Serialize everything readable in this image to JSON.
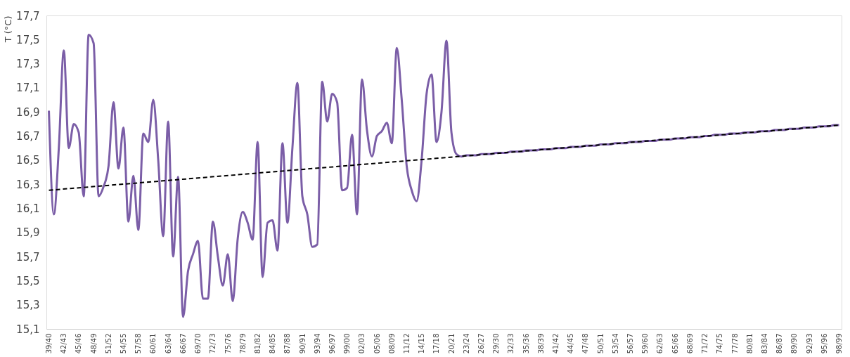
{
  "chart_data": {
    "type": "line",
    "ylabel": "T (°C)",
    "categories": [
      "39/40",
      null,
      null,
      "42/43",
      null,
      null,
      "45/46",
      null,
      null,
      "48/49",
      null,
      null,
      "51/52",
      null,
      null,
      "54/55",
      null,
      null,
      "57/58",
      null,
      null,
      "60/61",
      null,
      null,
      "63/64",
      null,
      null,
      "66/67",
      null,
      null,
      "69/70",
      null,
      null,
      "72/73",
      null,
      null,
      "75/76",
      null,
      null,
      "78/79",
      null,
      null,
      "81/82",
      null,
      null,
      "84/85",
      null,
      null,
      "87/88",
      null,
      null,
      "90/91",
      null,
      null,
      "93/94",
      null,
      null,
      "96/97",
      null,
      null,
      "99/00",
      null,
      null,
      "02/03",
      null,
      null,
      "05/06",
      null,
      null,
      "08/09",
      null,
      null,
      "11/12",
      null,
      null,
      "14/15",
      null,
      null,
      "17/18",
      null,
      null,
      "20/21",
      null,
      null,
      "23/24",
      null,
      null,
      "26/27",
      null,
      null,
      "29/30",
      null,
      null,
      "32/33",
      null,
      null,
      "35/36",
      null,
      null,
      "38/39",
      null,
      null,
      "41/42",
      null,
      null,
      "44/45",
      null,
      null,
      "47/48",
      null,
      null,
      "50/51",
      null,
      null,
      "53/54",
      null,
      null,
      "56/57",
      null,
      null,
      "59/60",
      null,
      null,
      "62/63",
      null,
      null,
      "65/66",
      null,
      null,
      "68/69",
      null,
      null,
      "71/72",
      null,
      null,
      "74/75",
      null,
      null,
      "77/78",
      null,
      null,
      "80/81",
      null,
      null,
      "83/84",
      null,
      null,
      "86/87",
      null,
      null,
      "89/90",
      null,
      null,
      "92/93",
      null,
      null,
      "95/96",
      null,
      null,
      "98/99"
    ],
    "series": [
      {
        "color": "#7b5ea7",
        "values": [
          16.91,
          16.05,
          16.6,
          17.41,
          16.6,
          16.8,
          16.73,
          16.2,
          17.54,
          17.47,
          16.2,
          16.28,
          16.45,
          16.98,
          16.43,
          16.77,
          15.99,
          16.37,
          15.92,
          16.72,
          16.65,
          17.0,
          16.5,
          15.87,
          16.82,
          15.7,
          16.36,
          15.2,
          15.58,
          15.72,
          15.83,
          15.35,
          15.35,
          15.99,
          15.7,
          15.46,
          15.72,
          15.33,
          15.85,
          16.07,
          15.98,
          15.84,
          16.65,
          15.53,
          15.98,
          16.0,
          15.75,
          16.64,
          15.98,
          16.6,
          17.14,
          16.2,
          16.05,
          15.78,
          15.8,
          17.15,
          16.82,
          17.05,
          16.98,
          16.25,
          16.27,
          16.71,
          16.05,
          17.17,
          16.75,
          16.53,
          16.7,
          16.74,
          16.81,
          16.64,
          17.43,
          17.0,
          16.45,
          16.25,
          16.16,
          16.5,
          17.05,
          17.21,
          16.65,
          16.9,
          17.49,
          16.73,
          16.55,
          16.53,
          16.54,
          16.54,
          16.54,
          16.55,
          16.55,
          16.55,
          16.56,
          16.56,
          16.56,
          16.57,
          16.57,
          16.57,
          16.58,
          16.58,
          16.58,
          16.59,
          16.59,
          16.59,
          16.6,
          16.6,
          16.6,
          16.61,
          16.61,
          16.61,
          16.62,
          16.62,
          16.62,
          16.63,
          16.63,
          16.63,
          16.64,
          16.64,
          16.64,
          16.65,
          16.65,
          16.65,
          16.66,
          16.66,
          16.66,
          16.67,
          16.67,
          16.67,
          16.68,
          16.68,
          16.68,
          16.69,
          16.69,
          16.69,
          16.7,
          16.7,
          16.71,
          16.71,
          16.71,
          16.72,
          16.72,
          16.72,
          16.73,
          16.73,
          16.73,
          16.74,
          16.74,
          16.74,
          16.75,
          16.75,
          16.75,
          16.76,
          16.76,
          16.76,
          16.77,
          16.77,
          16.77,
          16.78,
          16.78,
          16.78,
          16.79,
          16.79
        ]
      },
      {
        "type": "line",
        "color": "#000000",
        "line_style": "dashed",
        "x": [
          "39/40",
          "98/99"
        ],
        "values": [
          16.25,
          16.79
        ]
      }
    ],
    "ylim": [
      15.1,
      17.7
    ],
    "yticks": [
      {
        "value": 15.1,
        "label": "15,1"
      },
      {
        "value": 15.3,
        "label": "15,3"
      },
      {
        "value": 15.5,
        "label": "15,5"
      },
      {
        "value": 15.7,
        "label": "15,7"
      },
      {
        "value": 15.9,
        "label": "15,9"
      },
      {
        "value": 16.1,
        "label": "16,1"
      },
      {
        "value": 16.3,
        "label": "16,3"
      },
      {
        "value": 16.5,
        "label": "16,5"
      },
      {
        "value": 16.7,
        "label": "16,7"
      },
      {
        "value": 16.9,
        "label": "16,9"
      },
      {
        "value": 17.1,
        "label": "17,1"
      },
      {
        "value": 17.3,
        "label": "17,3"
      },
      {
        "value": 17.5,
        "label": "17,5"
      },
      {
        "value": 17.7,
        "label": "17,7"
      }
    ],
    "grid": false,
    "marker": "none",
    "line_style": "solid"
  }
}
